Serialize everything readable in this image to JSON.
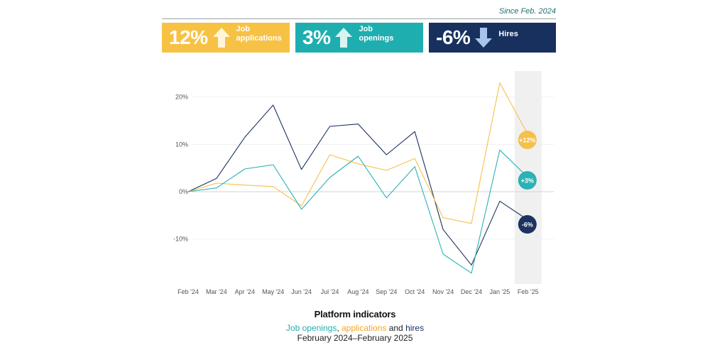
{
  "since_label": "Since Feb. 2024",
  "kpis": [
    {
      "value": "12%",
      "label_line1": "Job",
      "label_line2": "applications",
      "direction": "up",
      "icon": "arrow-up-icon",
      "bg": "#f7c244",
      "arrow_color": "#fff6d8"
    },
    {
      "value": "3%",
      "label_line1": "Job",
      "label_line2": "openings",
      "direction": "up",
      "icon": "arrow-up-icon",
      "bg": "#1faeb0",
      "arrow_color": "#d8f4f0"
    },
    {
      "value": "-6%",
      "label_line1": "Hires",
      "label_line2": "",
      "direction": "down",
      "icon": "arrow-down-icon",
      "bg": "#17305e",
      "arrow_color": "#a9c4ea"
    }
  ],
  "footer": {
    "title": "Platform indicators",
    "sub_open": "Job openings",
    "sub_sep1": ", ",
    "sub_app": "applications",
    "sub_sep2": " and ",
    "sub_hire": "hires",
    "date_range": "February 2024–February 2025"
  },
  "chart_data": {
    "type": "line",
    "categories": [
      "Feb '24",
      "Mar '24",
      "Apr '24",
      "May '24",
      "Jun '24",
      "Jul '24",
      "Aug '24",
      "Sep '24",
      "Oct '24",
      "Nov '24",
      "Dec '24",
      "Jan '25",
      "Feb '25"
    ],
    "yticks": [
      20,
      10,
      0,
      -10
    ],
    "ytick_labels": [
      "20%",
      "10%",
      "0%",
      "-10%"
    ],
    "ylim": [
      -19.5,
      25.5
    ],
    "grid": true,
    "highlight_last_category": true,
    "series": [
      {
        "key": "hires",
        "color": "#1c3260",
        "values": [
          0,
          2.8,
          11.5,
          18.3,
          4.7,
          13.8,
          14.3,
          7.8,
          12.7,
          -8.0,
          -15.5,
          -2.0,
          -6.0
        ],
        "end_label": "-6%"
      },
      {
        "key": "applications",
        "color": "#f5c04a",
        "values": [
          0,
          1.8,
          1.4,
          1.1,
          -3.0,
          7.8,
          5.9,
          4.5,
          7.0,
          -5.5,
          -6.7,
          23.0,
          12.0
        ],
        "end_label": "+12%"
      },
      {
        "key": "openings",
        "color": "#2bb2b4",
        "values": [
          0,
          0.8,
          4.8,
          5.7,
          -3.7,
          3.0,
          7.5,
          -1.3,
          5.3,
          -13.2,
          -17.2,
          8.8,
          3.0
        ],
        "end_label": "+3%"
      }
    ]
  }
}
